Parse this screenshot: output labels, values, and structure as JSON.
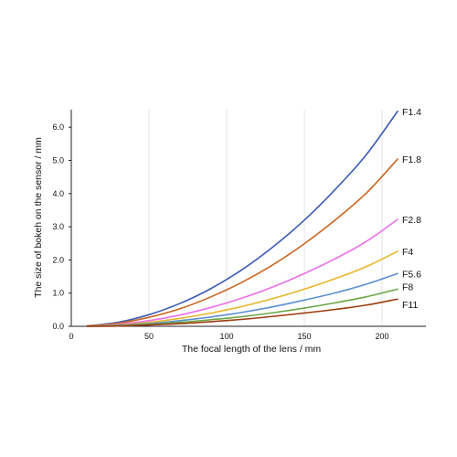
{
  "chart_data": {
    "type": "line",
    "title": "",
    "xlabel": "The focal length of the lens / mm",
    "ylabel": "The size of bokeh on the sensor / mm",
    "xlim": [
      0,
      230
    ],
    "ylim": [
      0,
      6.6
    ],
    "xticks": [
      0,
      50,
      100,
      150,
      200
    ],
    "yticks": [
      0,
      1,
      2,
      3,
      4,
      5,
      6
    ],
    "xtick_labels": [
      "0",
      "50",
      "100",
      "150",
      "200"
    ],
    "ytick_labels": [
      "0.0",
      "1.0",
      "2.0",
      "3.0",
      "4.0",
      "5.0",
      "6.0"
    ],
    "grid": "vertical",
    "legend": "labels at line ends",
    "x": [
      10,
      30,
      50,
      70,
      90,
      110,
      130,
      150,
      170,
      190,
      210
    ],
    "series": [
      {
        "name": "F1.4",
        "color": "#3b5bb5",
        "values": [
          0.01,
          0.12,
          0.35,
          0.69,
          1.14,
          1.71,
          2.4,
          3.2,
          4.13,
          5.18,
          6.48
        ]
      },
      {
        "name": "F1.8",
        "color": "#c9661f",
        "values": [
          0.01,
          0.09,
          0.27,
          0.53,
          0.89,
          1.33,
          1.86,
          2.49,
          3.21,
          4.02,
          5.04
        ]
      },
      {
        "name": "F2.8",
        "color": "#ea6fea",
        "values": [
          0.0,
          0.06,
          0.17,
          0.34,
          0.57,
          0.85,
          1.19,
          1.59,
          2.04,
          2.56,
          3.22
        ]
      },
      {
        "name": "F4",
        "color": "#e7b62a",
        "values": [
          0.0,
          0.04,
          0.12,
          0.24,
          0.4,
          0.6,
          0.84,
          1.12,
          1.44,
          1.8,
          2.26
        ]
      },
      {
        "name": "F5.6",
        "color": "#5b8fcf",
        "values": [
          0.0,
          0.03,
          0.08,
          0.17,
          0.28,
          0.42,
          0.59,
          0.79,
          1.01,
          1.27,
          1.59
        ]
      },
      {
        "name": "F8",
        "color": "#6aa744",
        "values": [
          0.0,
          0.02,
          0.06,
          0.12,
          0.2,
          0.29,
          0.41,
          0.55,
          0.71,
          0.89,
          1.12
        ]
      },
      {
        "name": "F11",
        "color": "#9e3a0f",
        "values": [
          0.0,
          0.01,
          0.04,
          0.08,
          0.14,
          0.21,
          0.3,
          0.4,
          0.51,
          0.64,
          0.82
        ]
      }
    ]
  }
}
